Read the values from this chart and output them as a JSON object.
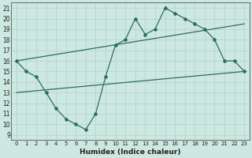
{
  "xlabel": "Humidex (Indice chaleur)",
  "bg_color": "#cce8e0",
  "line_color": "#2d6e5e",
  "grid_color": "#b8d8d0",
  "x_ticks": [
    0,
    1,
    2,
    3,
    4,
    5,
    6,
    7,
    8,
    9,
    10,
    11,
    12,
    13,
    14,
    15,
    16,
    17,
    18,
    19,
    20,
    21,
    22,
    23
  ],
  "y_ticks": [
    9,
    10,
    11,
    12,
    13,
    14,
    15,
    16,
    17,
    18,
    19,
    20,
    21
  ],
  "xlim": [
    -0.5,
    23.5
  ],
  "ylim": [
    8.5,
    21.5
  ],
  "data_line": {
    "x": [
      0,
      1,
      2,
      3,
      4,
      5,
      6,
      7,
      8,
      9,
      10,
      11,
      12,
      13,
      14,
      15,
      16,
      17,
      18,
      19,
      20,
      21,
      22,
      23
    ],
    "y": [
      16,
      15,
      14.5,
      13,
      11.5,
      10.5,
      10,
      9.5,
      11,
      14.5,
      17.5,
      18,
      20,
      18.5,
      19,
      21,
      20.5,
      20,
      19.5,
      19,
      18,
      16,
      16,
      15
    ]
  },
  "trend_line1": {
    "x": [
      0,
      23
    ],
    "y": [
      16.0,
      19.5
    ]
  },
  "trend_line2": {
    "x": [
      0,
      23
    ],
    "y": [
      13.0,
      15.0
    ]
  }
}
